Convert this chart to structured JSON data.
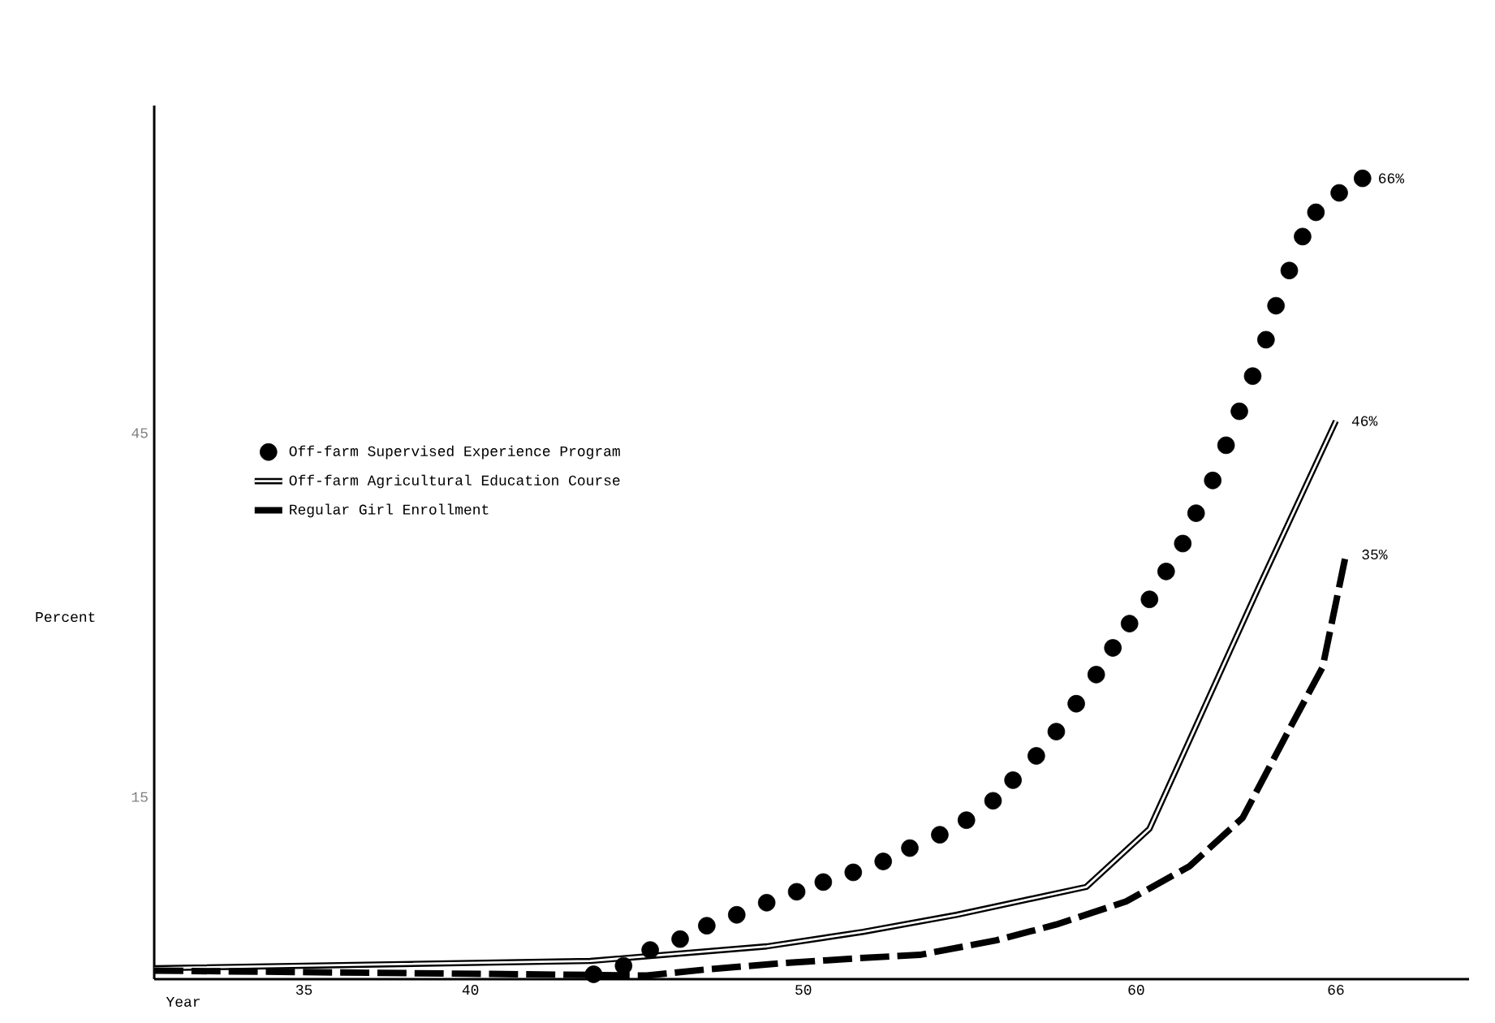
{
  "chart_data": {
    "type": "line",
    "xlabel": "Year",
    "ylabel": "Percent",
    "xlim": [
      30.5,
      70
    ],
    "xticks": [
      35,
      40,
      50,
      60,
      66
    ],
    "ylim": [
      0,
      72
    ],
    "yticks": [
      15,
      45
    ],
    "legend": "left",
    "grid": false,
    "series": [
      {
        "name": "Off-farm Supervised Experience Program",
        "type": "scatter",
        "color": "#000000",
        "x": [
          43.7,
          44.6,
          45.4,
          46.3,
          47.1,
          48.0,
          48.9,
          49.8,
          50.6,
          51.5,
          52.4,
          53.2,
          54.1,
          54.9,
          55.7,
          56.3,
          57.0,
          57.6,
          58.2,
          58.8,
          59.3,
          59.8,
          60.4,
          60.9,
          61.4,
          61.8,
          62.3,
          62.7,
          63.1,
          63.5,
          63.9,
          64.2,
          64.6,
          65.0,
          65.4,
          66.1,
          66.8
        ],
        "values": [
          0.4,
          1.1,
          2.4,
          3.3,
          4.4,
          5.3,
          6.3,
          7.2,
          8.0,
          8.8,
          9.7,
          10.8,
          11.9,
          13.1,
          14.7,
          16.4,
          18.4,
          20.4,
          22.7,
          25.1,
          27.3,
          29.3,
          31.3,
          33.6,
          35.9,
          38.4,
          41.1,
          44.0,
          46.8,
          49.7,
          52.7,
          55.5,
          58.4,
          61.2,
          63.2,
          64.8,
          66
        ]
      },
      {
        "name": "Off-farm Agricultural Education Course",
        "line_style": "solid",
        "color": "#000000",
        "x": [
          30.5,
          43.6,
          48.9,
          51.8,
          54.6,
          58.5,
          60.4,
          63.7,
          66.0
        ],
        "values": [
          0.9,
          1.5,
          2.7,
          3.9,
          5.3,
          7.6,
          12.4,
          32.4,
          46
        ]
      },
      {
        "name": "Regular Girl Enrollment",
        "line_style": "dashed",
        "color": "#000000",
        "x": [
          30.5,
          45.3,
          47.1,
          49.3,
          51.5,
          53.5,
          55.8,
          57.6,
          59.7,
          61.6,
          63.2,
          64.7,
          65.6,
          66.3
        ],
        "values": [
          0.7,
          0.3,
          0.8,
          1.3,
          1.7,
          2.0,
          3.2,
          4.5,
          6.4,
          9.3,
          13.3,
          21.1,
          25.7,
          35
        ]
      }
    ],
    "annotations": [
      {
        "text": "66%",
        "x": 66.8,
        "y": 66
      },
      {
        "text": "46%",
        "x": 66.0,
        "y": 46
      },
      {
        "text": "35%",
        "x": 66.3,
        "y": 35
      }
    ]
  }
}
